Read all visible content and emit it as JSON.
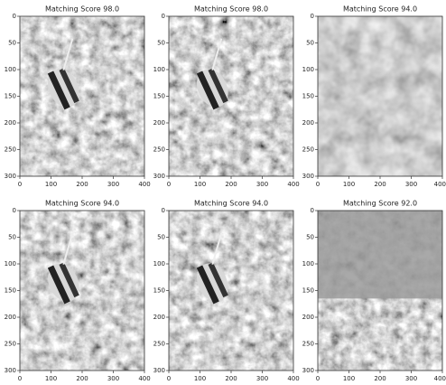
{
  "chart_data": [
    {
      "type": "image",
      "title": "Matching Score 98.0",
      "xlim": [
        0,
        400
      ],
      "ylim": [
        300,
        0
      ],
      "xticks": [
        0,
        100,
        200,
        300,
        400
      ],
      "yticks": [
        0,
        50,
        100,
        150,
        200,
        250,
        300
      ]
    },
    {
      "type": "image",
      "title": "Matching Score 98.0",
      "xlim": [
        0,
        400
      ],
      "ylim": [
        300,
        0
      ],
      "xticks": [
        0,
        100,
        200,
        300,
        400
      ],
      "yticks": [
        0,
        50,
        100,
        150,
        200,
        250,
        300
      ]
    },
    {
      "type": "image",
      "title": "Matching Score 94.0",
      "xlim": [
        0,
        400
      ],
      "ylim": [
        300,
        0
      ],
      "xticks": [
        0,
        100,
        200,
        300,
        400
      ],
      "yticks": [
        0,
        50,
        100,
        150,
        200,
        250,
        300
      ]
    },
    {
      "type": "image",
      "title": "Matching Score 94.0",
      "xlim": [
        0,
        400
      ],
      "ylim": [
        300,
        0
      ],
      "xticks": [
        0,
        100,
        200,
        300,
        400
      ],
      "yticks": [
        0,
        50,
        100,
        150,
        200,
        250,
        300
      ]
    },
    {
      "type": "image",
      "title": "Matching Score 94.0",
      "xlim": [
        0,
        400
      ],
      "ylim": [
        300,
        0
      ],
      "xticks": [
        0,
        100,
        200,
        300,
        400
      ],
      "yticks": [
        0,
        50,
        100,
        150,
        200,
        250,
        300
      ]
    },
    {
      "type": "image",
      "title": "Matching Score 92.0",
      "xlim": [
        0,
        400
      ],
      "ylim": [
        300,
        0
      ],
      "xticks": [
        0,
        100,
        200,
        300,
        400
      ],
      "yticks": [
        0,
        50,
        100,
        150,
        200,
        250,
        300
      ]
    }
  ]
}
